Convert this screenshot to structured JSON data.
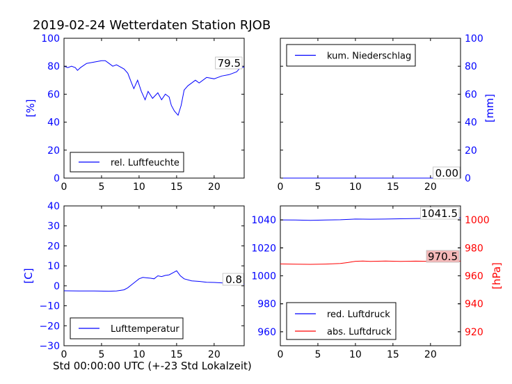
{
  "title": "2019-02-24 Wetterdaten Station RJOB",
  "xcaption": "Std 00:00:00 UTC (+-23 Std Lokalzeit)",
  "colors": {
    "blue": "#0000ff",
    "red": "#ff0000",
    "label_bg_red": "#f4b8b8"
  },
  "chart_data": [
    {
      "type": "line",
      "ylabel": "[%]",
      "xlim": [
        0,
        24
      ],
      "ylim": [
        0,
        100
      ],
      "xticks": [
        0,
        5,
        10,
        15,
        20
      ],
      "yticks": [
        0,
        20,
        40,
        60,
        80,
        100
      ],
      "legend": "lower-left",
      "series": [
        {
          "name": "rel. Luftfeuchte",
          "color": "#0000ff",
          "x": [
            0,
            0.5,
            1,
            1.5,
            1.8,
            2.2,
            3,
            4,
            5,
            5.5,
            6,
            6.5,
            7,
            8,
            8.5,
            9,
            9.3,
            9.8,
            10.3,
            10.8,
            11.2,
            11.8,
            12.5,
            13,
            13.5,
            14,
            14.3,
            14.7,
            15.2,
            15.6,
            16,
            16.5,
            17,
            17.5,
            18,
            19,
            20,
            21,
            22,
            23,
            23.5,
            24
          ],
          "y": [
            80,
            79,
            80,
            79,
            77,
            79,
            82,
            83,
            84,
            84,
            82,
            80,
            81,
            78,
            75,
            68,
            64,
            70,
            62,
            56,
            62,
            57,
            61,
            56,
            60,
            58,
            52,
            48,
            45,
            52,
            63,
            66,
            68,
            70,
            68,
            72,
            71,
            73,
            74,
            76,
            79,
            79.5
          ]
        }
      ],
      "last_value_label": "79.5"
    },
    {
      "type": "line",
      "ylabel": "[mm]",
      "xlim": [
        0,
        24
      ],
      "ylim": [
        0,
        100
      ],
      "xticks": [
        0,
        5,
        10,
        15,
        20
      ],
      "yticks": [
        0,
        20,
        40,
        60,
        80,
        100
      ],
      "legend": "top-left",
      "series": [
        {
          "name": "kum. Niederschlag",
          "color": "#0000ff",
          "x": [
            0,
            24
          ],
          "y": [
            0,
            0
          ]
        }
      ],
      "last_value_label": "0.00"
    },
    {
      "type": "line",
      "ylabel": "[C]",
      "xlim": [
        0,
        24
      ],
      "ylim": [
        -30,
        40
      ],
      "xticks": [
        0,
        5,
        10,
        15,
        20
      ],
      "yticks": [
        -30,
        -20,
        -10,
        0,
        10,
        20,
        30,
        40
      ],
      "legend": "lower-left",
      "series": [
        {
          "name": "Lufttemperatur",
          "color": "#0000ff",
          "x": [
            0,
            2,
            4,
            6,
            7,
            8,
            8.5,
            9,
            9.5,
            10,
            10.5,
            11,
            11.5,
            12,
            12.5,
            13,
            13.5,
            14,
            14.5,
            15,
            15.5,
            16,
            17,
            18,
            19,
            20,
            21,
            22,
            23,
            24
          ],
          "y": [
            -2.5,
            -2.6,
            -2.6,
            -2.7,
            -2.6,
            -2.0,
            -1.0,
            0.5,
            2.0,
            3.5,
            4.2,
            4.0,
            3.8,
            3.5,
            5.0,
            4.6,
            5.2,
            5.5,
            6.5,
            7.5,
            5.0,
            3.5,
            2.5,
            2.2,
            1.8,
            1.7,
            1.5,
            1.2,
            0.9,
            0.8
          ]
        }
      ],
      "last_value_label": "0.8"
    },
    {
      "type": "line",
      "ylabel_right": "[hPa]",
      "xlim": [
        0,
        24
      ],
      "ylim_left": [
        950,
        1050
      ],
      "ylim_right": [
        910,
        1010
      ],
      "xticks": [
        0,
        5,
        10,
        15,
        20
      ],
      "yticks_left": [
        960,
        980,
        1000,
        1020,
        1040
      ],
      "yticks_right": [
        920,
        940,
        960,
        980,
        1000
      ],
      "legend": "lower-left",
      "series": [
        {
          "name": "red. Luftdruck",
          "color": "#0000ff",
          "axis": "left",
          "x": [
            0,
            2,
            4,
            6,
            8,
            10,
            12,
            14,
            16,
            18,
            20,
            22,
            24
          ],
          "y": [
            1040.0,
            1039.9,
            1039.7,
            1039.9,
            1040.1,
            1040.6,
            1040.5,
            1040.6,
            1040.8,
            1041.0,
            1041.2,
            1041.4,
            1041.5
          ]
        },
        {
          "name": "abs. Luftdruck",
          "color": "#ff0000",
          "axis": "right",
          "x": [
            0,
            2,
            4,
            6,
            8,
            9,
            10,
            11,
            12,
            14,
            16,
            18,
            20,
            22,
            24
          ],
          "y": [
            968.5,
            968.3,
            968.2,
            968.4,
            968.8,
            969.5,
            970.4,
            970.6,
            970.3,
            970.6,
            970.3,
            970.5,
            970.4,
            970.4,
            970.5
          ]
        }
      ],
      "last_value_labels": [
        "1041.5",
        "970.5"
      ]
    }
  ]
}
